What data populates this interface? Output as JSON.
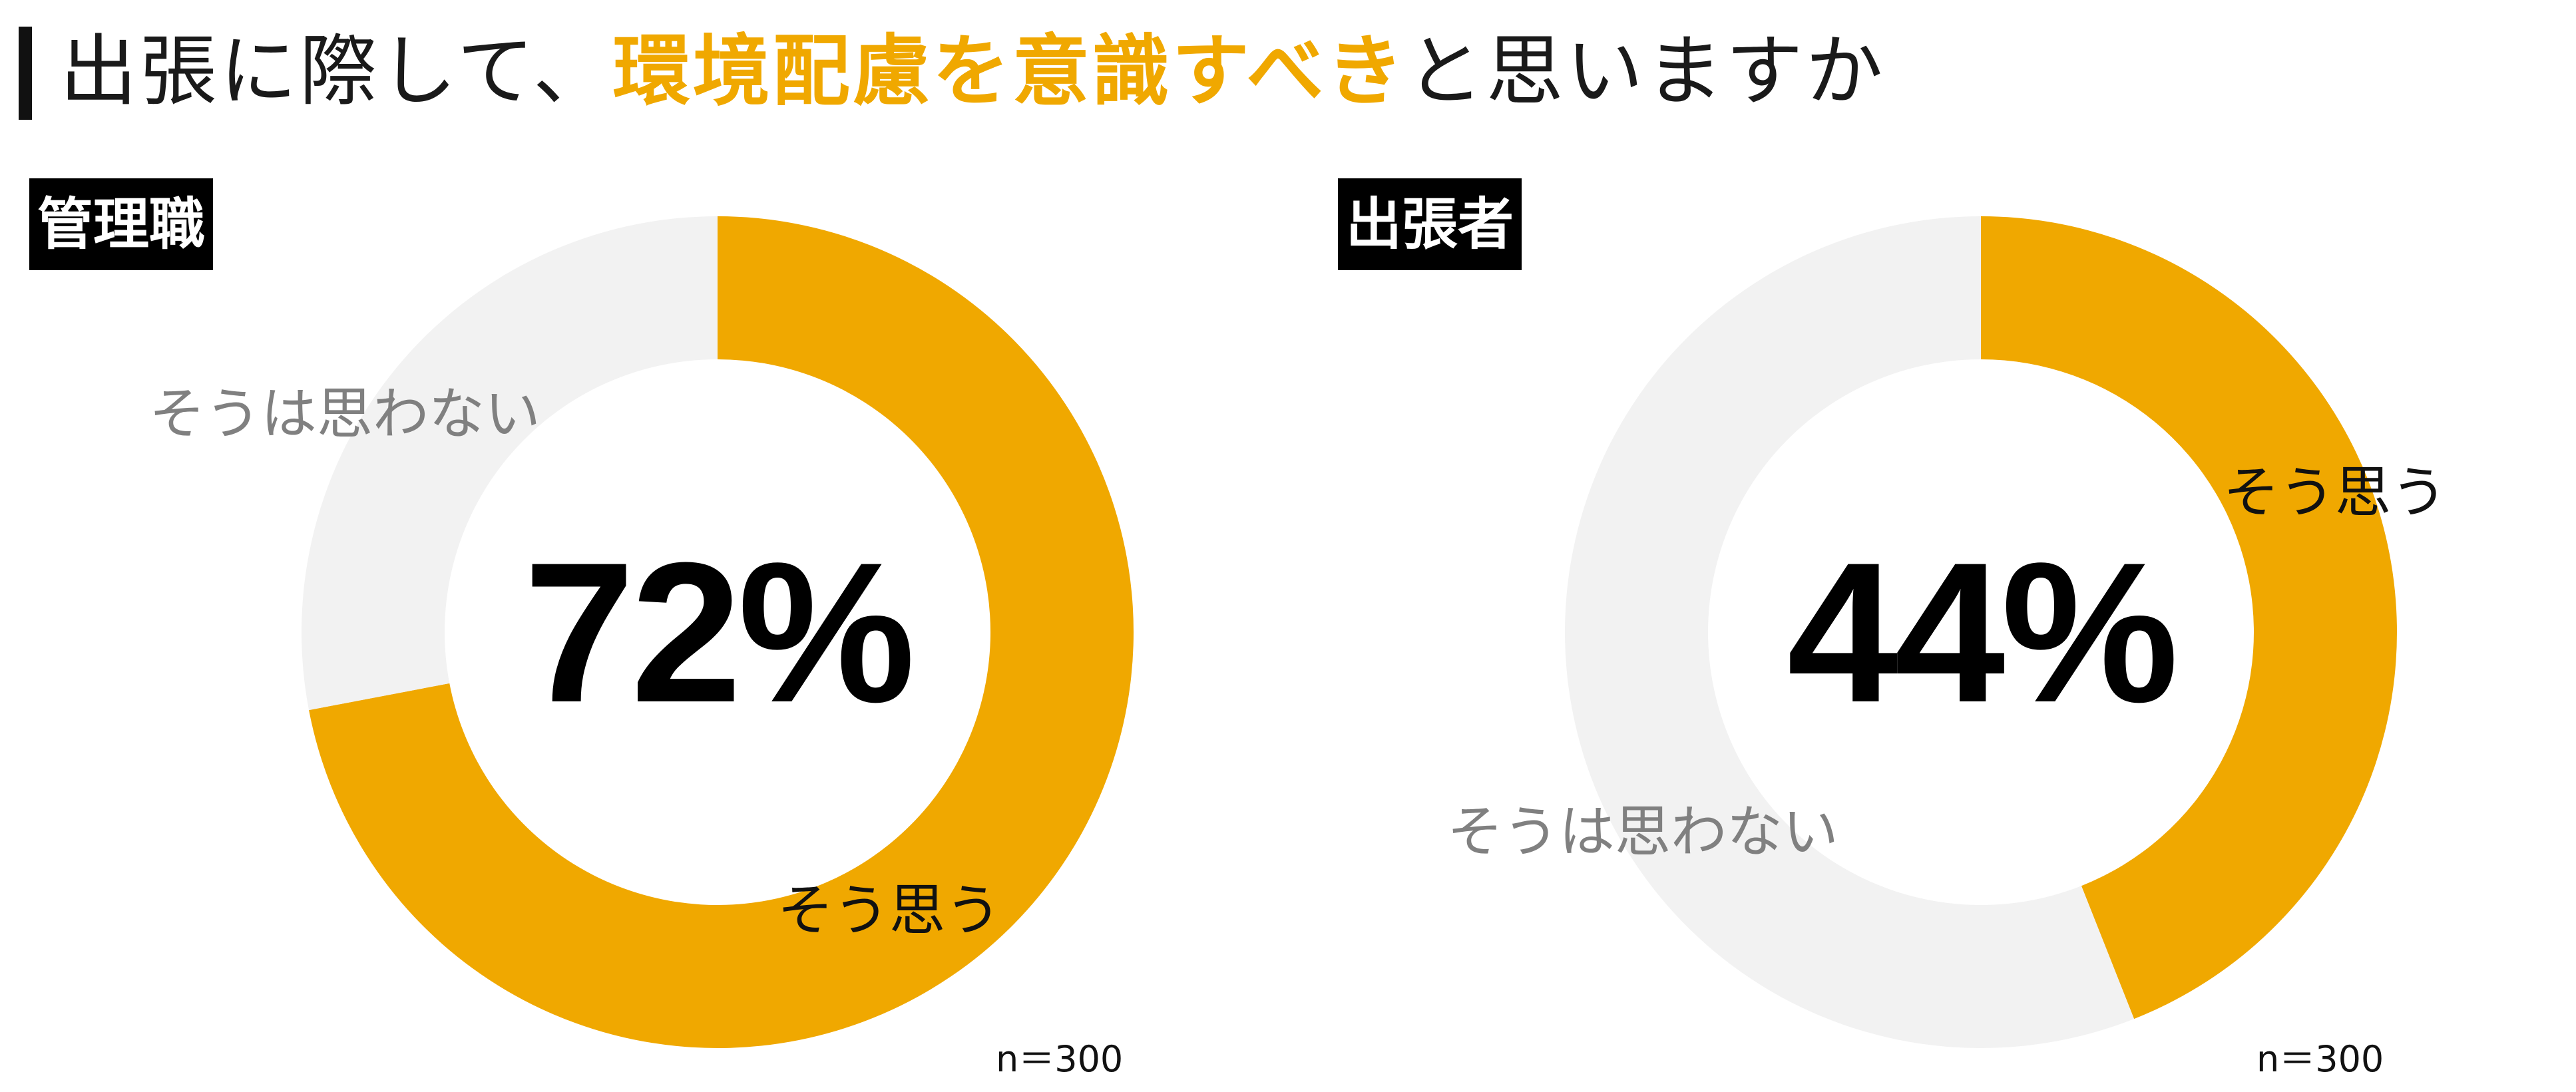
{
  "title": {
    "part1": "出張に際して、",
    "highlight": "環境配慮を意識すべき",
    "part2": "と思いますか"
  },
  "colors": {
    "yes": "#f0a800",
    "no": "#f2f2f2",
    "accent": "#f0a800"
  },
  "chart_data": [
    {
      "type": "pie",
      "group": "管理職",
      "center_label": "72%",
      "n_label": "n＝300",
      "slices": [
        {
          "label": "そう思う",
          "value": 72
        },
        {
          "label": "そうは思わない",
          "value": 28
        }
      ]
    },
    {
      "type": "pie",
      "group": "出張者",
      "center_label": "44%",
      "n_label": "n＝300",
      "slices": [
        {
          "label": "そう思う",
          "value": 44
        },
        {
          "label": "そうは思わない",
          "value": 56
        }
      ]
    }
  ]
}
